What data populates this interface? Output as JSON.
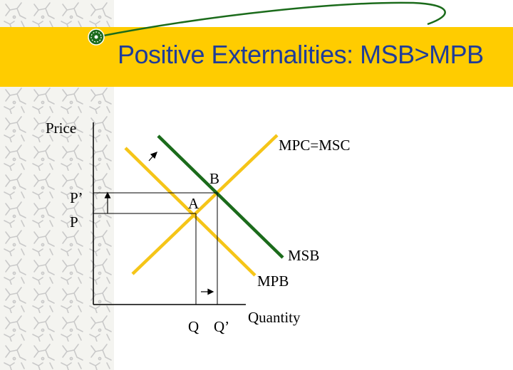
{
  "slide": {
    "title": "Positive Externalities: MSB>MPB"
  },
  "colors": {
    "title_bar": "#FFCC00",
    "title_text": "#1F3C99",
    "mpc_line": "#F5C518",
    "mpb_line": "#F5C518",
    "msb_line": "#1B6B1B",
    "swoosh": "#1B6B1B"
  },
  "icons": {
    "bullet": "green-dotted-bullet-icon",
    "sidebar": "molecule-pattern"
  },
  "diagram": {
    "y_axis_label": "Price",
    "x_axis_label": "Quantity",
    "price_labels": {
      "p_prime": "P’",
      "p": "P"
    },
    "quantity_labels": {
      "q": "Q",
      "q_prime": "Q’"
    },
    "points": {
      "a": "A",
      "b": "B"
    },
    "curves": {
      "mpc": "MPC=MSC",
      "msb": "MSB",
      "mpb": "MPB"
    }
  }
}
